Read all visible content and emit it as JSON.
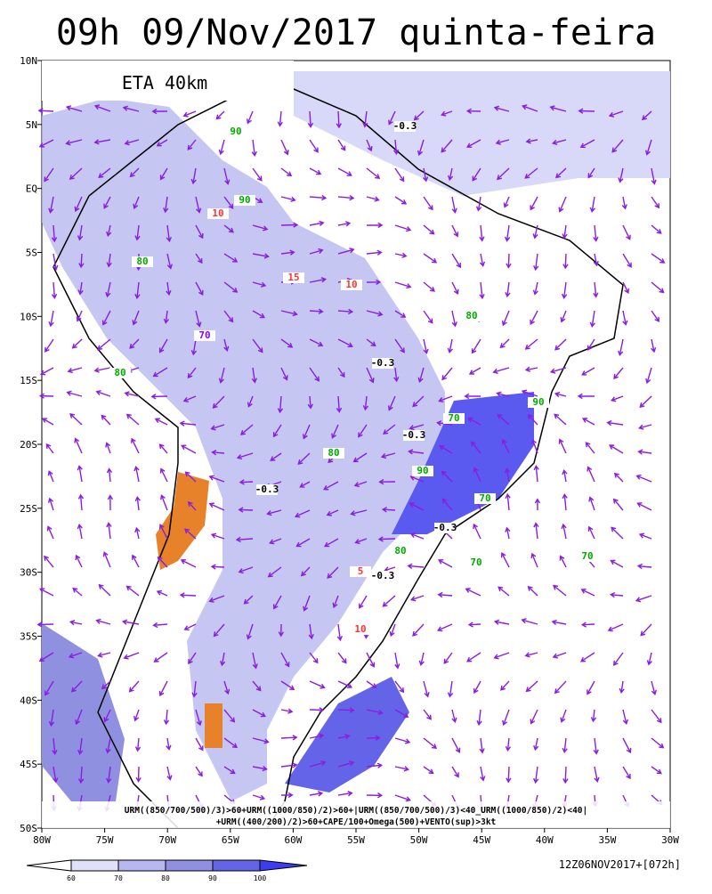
{
  "header": {
    "title": "09h 09/Nov/2017 quinta-feira",
    "model": "ETA 40km"
  },
  "axes": {
    "lat_labels": [
      "10N",
      "5N",
      "EQ",
      "5S",
      "10S",
      "15S",
      "20S",
      "25S",
      "30S",
      "35S",
      "40S",
      "45S",
      "50S"
    ],
    "lon_labels": [
      "80W",
      "75W",
      "70W",
      "65W",
      "60W",
      "55W",
      "50W",
      "45W",
      "40W",
      "35W",
      "30W"
    ]
  },
  "legend": {
    "line1": "URM((850/700/500)/3)>60+URM((1000/850)/2)>60+|URM((850/700/500)/3)<40_URM((1000/850)/2)<40|",
    "line2": "+URM((400/200)/2)>60+CAPE/100+Omega(500)+VENTO(sup)>3kt"
  },
  "colorbar": {
    "labels": [
      "60",
      "70",
      "80",
      "90",
      "100"
    ]
  },
  "run": "12Z06NOV2017+[072h]",
  "contour_labels": [
    "90",
    "90",
    "80",
    "80",
    "70",
    "10",
    "15",
    "10",
    "-0.3",
    "-0.3",
    "-0.3",
    "-0.3",
    "-0.3",
    "70",
    "80",
    "90",
    "70",
    "80",
    "70",
    "70",
    "-0.3",
    "80",
    "90",
    "10",
    "5"
  ]
}
